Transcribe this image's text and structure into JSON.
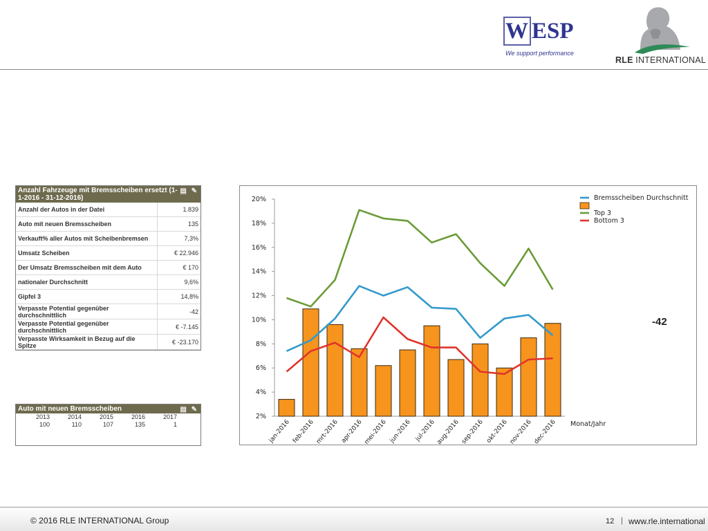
{
  "header": {
    "wesp_w": "W",
    "wesp_rest": "ESP",
    "wesp_tagline": "We support performance",
    "rle_bold": "RLE",
    "rle_rest": " INTERNATIONAL"
  },
  "table1": {
    "title": "Anzahl Fahrzeuge mit Bremsscheiben ersetzt (1-1-2016 - 31-12-2016)",
    "icons": "▤ ✎",
    "rows": [
      {
        "label": "Anzahl der Autos in der Datei",
        "value": "1.839"
      },
      {
        "label": "Auto mit neuen Bremsscheiben",
        "value": "135"
      },
      {
        "label": "Verkauft% aller Autos mit Scheibenbremsen",
        "value": "7,3%"
      },
      {
        "label": "Umsatz Scheiben",
        "value": "€ 22.946"
      },
      {
        "label": "Der Umsatz Bremsscheiben mit dem Auto",
        "value": "€ 170"
      },
      {
        "label": "nationaler Durchschnitt",
        "value": "9,6%"
      },
      {
        "label": "Gipfel 3",
        "value": "14,8%"
      },
      {
        "label": "Verpasste Potential gegenüber durchschnittlich",
        "value": "-42"
      },
      {
        "label": "Verpasste Potential gegenüber durchschnittlich",
        "value": "€ -7.145"
      },
      {
        "label": "Verpasste Wirksamkeit in Bezug auf die Spitze",
        "value": "€ -23.170"
      }
    ]
  },
  "table2": {
    "title": "Auto mit neuen Bremsscheiben",
    "icons": "▤ ✎",
    "years": [
      "2013",
      "2014",
      "2015",
      "2016",
      "2017"
    ],
    "values": [
      "100",
      "110",
      "107",
      "135",
      "1"
    ]
  },
  "annotation": "-42",
  "chart_data": {
    "type": "bar",
    "categories": [
      "jan-2016",
      "feb-2016",
      "mrt-2016",
      "apr-2016",
      "mei-2016",
      "jun-2016",
      "jul-2016",
      "aug-2016",
      "sep-2016",
      "okt-2016",
      "nov-2016",
      "dec-2016"
    ],
    "xlabel": "Monat/Jahr",
    "ylim": [
      2,
      20
    ],
    "yticks": [
      "2%",
      "4%",
      "6%",
      "8%",
      "10%",
      "12%",
      "14%",
      "16%",
      "18%",
      "20%"
    ],
    "series": [
      {
        "name": "Bremsscheiben Durchschnitt",
        "kind": "line",
        "color": "#3399cc",
        "values": [
          7.4,
          8.3,
          10.1,
          12.8,
          12.0,
          12.7,
          11.0,
          10.9,
          8.5,
          10.1,
          10.4,
          8.7
        ]
      },
      {
        "name": "",
        "kind": "bar",
        "color": "#f7941d",
        "values": [
          3.4,
          10.9,
          9.6,
          7.6,
          6.2,
          7.5,
          9.5,
          6.7,
          8.0,
          6.0,
          8.5,
          9.7
        ]
      },
      {
        "name": "Top 3",
        "kind": "line",
        "color": "#6b9b37",
        "values": [
          11.8,
          11.1,
          13.3,
          19.1,
          18.4,
          18.2,
          16.4,
          17.1,
          14.7,
          12.8,
          15.9,
          12.5
        ]
      },
      {
        "name": "Bottom 3",
        "kind": "line",
        "color": "#e0342b",
        "values": [
          5.7,
          7.4,
          8.1,
          6.9,
          10.2,
          8.4,
          7.7,
          7.7,
          5.7,
          5.5,
          6.7,
          6.8
        ]
      }
    ]
  },
  "footer": {
    "copyright": "© 2016 RLE INTERNATIONAL Group",
    "page": "12",
    "separator": "|",
    "site": "www.rle.international"
  }
}
